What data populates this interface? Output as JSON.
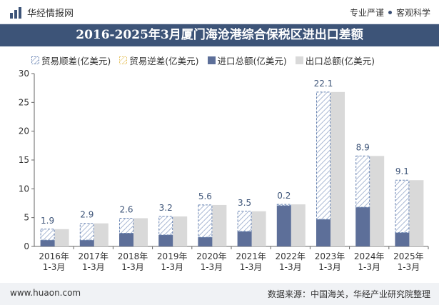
{
  "header": {
    "brand": "华经情报网",
    "slogan_left": "专业严谨",
    "slogan_right": "客观科学",
    "title": "2016-2025年3月厦门海沧港综合保税区进出口差额"
  },
  "footer": {
    "url": "www.huaon.com",
    "source": "数据来源：中国海关，华经产业研究院整理"
  },
  "colors": {
    "surplus": "#6b86b4",
    "deficit": "#e8c66a",
    "import": "#5d6f99",
    "export": "#d9d9d9",
    "titlebar": "#3d5478"
  },
  "chart_data": {
    "type": "bar",
    "title": "2016-2025年3月厦门海沧港综合保税区进出口差额",
    "categories": [
      "2016年\n1-3月",
      "2017年\n1-3月",
      "2018年\n1-3月",
      "2019年\n1-3月",
      "2020年\n1-3月",
      "2021年\n1-3月",
      "2022年\n1-3月",
      "2023年\n1-3月",
      "2024年\n1-3月",
      "2025年\n1-3月"
    ],
    "ylim": [
      0,
      30
    ],
    "yticks": [
      0,
      5,
      10,
      15,
      20,
      25,
      30
    ],
    "legend_position": "top",
    "series": [
      {
        "name": "贸易顺差(亿美元)",
        "values": [
          1.9,
          2.9,
          2.6,
          3.2,
          5.6,
          3.5,
          0.2,
          22.1,
          8.9,
          9.1
        ]
      },
      {
        "name": "贸易逆差(亿美元)",
        "values": [
          0,
          0,
          0,
          0,
          0,
          0,
          0,
          0,
          0,
          0
        ]
      },
      {
        "name": "进口总额(亿美元)",
        "values": [
          1.1,
          1.1,
          2.3,
          2.0,
          1.6,
          2.6,
          7.1,
          4.7,
          6.8,
          2.4
        ]
      },
      {
        "name": "出口总额(亿美元)",
        "values": [
          3.0,
          4.0,
          4.9,
          5.2,
          7.2,
          6.1,
          7.3,
          26.8,
          15.7,
          11.5
        ]
      }
    ],
    "data_labels": [
      "1.9",
      "2.9",
      "2.6",
      "3.2",
      "5.6",
      "3.5",
      "0.2",
      "22.1",
      "8.9",
      "9.1"
    ]
  }
}
